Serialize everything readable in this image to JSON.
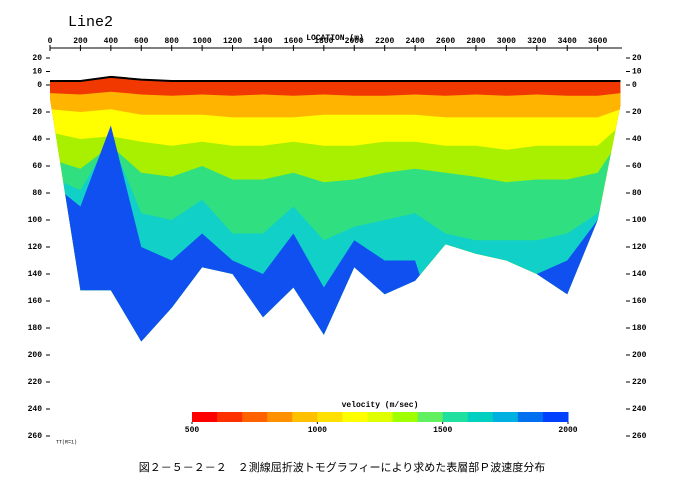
{
  "chart_data": {
    "type": "section",
    "title": "Line2",
    "x_label": "LOCATION (m)",
    "caption": "図２－５－２－２　２測線屈折波トモグラフィーにより求めた表層部Ｐ波速度分布",
    "footnote": "TT(R=1)",
    "x": [
      0,
      200,
      400,
      600,
      800,
      1000,
      1200,
      1400,
      1600,
      1800,
      2000,
      2200,
      2400,
      2600,
      2800,
      3000,
      3200,
      3400,
      3600,
      3750
    ],
    "xlim": [
      0,
      3760
    ],
    "xticks": [
      0,
      200,
      400,
      600,
      800,
      1000,
      1200,
      1400,
      1600,
      1800,
      2000,
      2200,
      2400,
      2600,
      2800,
      3000,
      3200,
      3400,
      3600
    ],
    "ylim": [
      -20,
      260
    ],
    "yticks": [
      {
        "value": -20,
        "label": "20"
      },
      {
        "value": -10,
        "label": "10"
      },
      0,
      20,
      40,
      60,
      80,
      100,
      120,
      140,
      160,
      180,
      200,
      220,
      240,
      260
    ],
    "bottom": [
      10,
      152,
      152,
      190,
      165,
      135,
      140,
      172,
      150,
      185,
      135,
      155,
      145,
      118,
      125,
      130,
      140,
      155,
      100,
      15
    ],
    "series": [
      {
        "color": "#f03800",
        "values": [
          -3,
          -3,
          -6,
          -4,
          -3,
          -3,
          -3,
          -3,
          -3,
          -3,
          -3,
          -3,
          -3,
          -3,
          -3,
          -3,
          -3,
          -3,
          -3,
          -3
        ]
      },
      {
        "color": "#ffb400",
        "values": [
          6,
          7,
          5,
          7,
          8,
          7,
          8,
          7,
          8,
          7,
          8,
          8,
          7,
          8,
          7,
          8,
          7,
          8,
          8,
          6
        ]
      },
      {
        "color": "#ffff00",
        "values": [
          18,
          20,
          18,
          22,
          22,
          22,
          24,
          24,
          24,
          22,
          22,
          22,
          22,
          24,
          24,
          24,
          24,
          24,
          24,
          18
        ]
      },
      {
        "color": "#a8f000",
        "values": [
          35,
          40,
          38,
          42,
          45,
          42,
          45,
          45,
          42,
          45,
          45,
          42,
          42,
          45,
          45,
          48,
          45,
          45,
          45,
          30
        ]
      },
      {
        "color": "#30e080",
        "values": [
          55,
          62,
          45,
          65,
          68,
          60,
          70,
          70,
          65,
          72,
          70,
          65,
          62,
          65,
          68,
          72,
          70,
          70,
          65,
          40
        ]
      },
      {
        "color": "#10d0c8",
        "values": [
          68,
          78,
          40,
          95,
          100,
          85,
          110,
          110,
          90,
          115,
          105,
          100,
          95,
          110,
          115,
          115,
          115,
          110,
          95,
          55
        ]
      },
      {
        "color": "#1050f0",
        "values": [
          72,
          90,
          30,
          120,
          130,
          110,
          130,
          140,
          110,
          150,
          115,
          130,
          130,
          200,
          200,
          200,
          140,
          130,
          100,
          60
        ]
      }
    ],
    "colorbar": {
      "label": "velocity (m/sec)",
      "lim": [
        500,
        2000
      ],
      "ticks": [
        500,
        1000,
        1500,
        2000
      ],
      "colors": [
        "#ff0000",
        "#ff3000",
        "#ff6000",
        "#ff9000",
        "#ffc000",
        "#ffe000",
        "#ffff00",
        "#e0ff00",
        "#a0ff00",
        "#60f060",
        "#20e0a0",
        "#00d0c0",
        "#00b0e0",
        "#0070f0",
        "#0040ff"
      ]
    }
  }
}
